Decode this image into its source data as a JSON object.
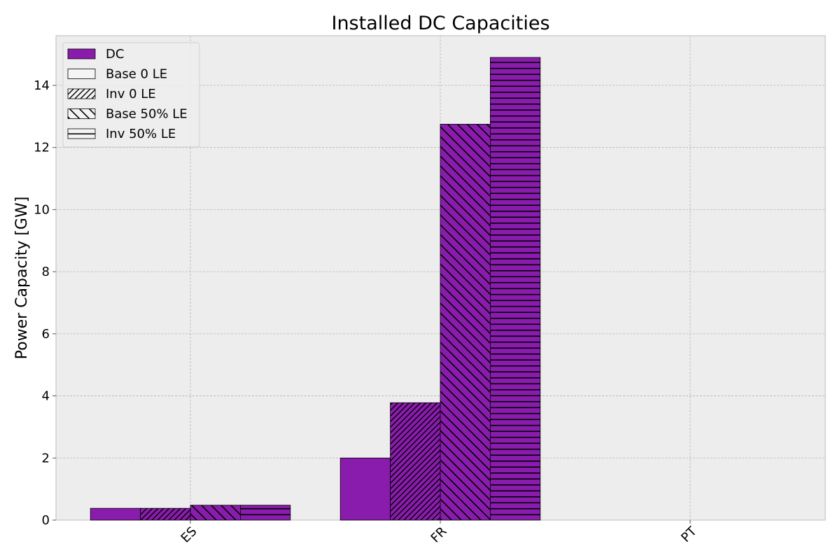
{
  "chart_data": {
    "type": "bar",
    "title": "Installed DC Capacities",
    "xlabel": "",
    "ylabel": "Power Capacity [GW]",
    "categories": [
      "ES",
      "FR",
      "PT"
    ],
    "ylim": [
      0,
      15.6
    ],
    "yticks": [
      0,
      2,
      4,
      6,
      8,
      10,
      12,
      14
    ],
    "grid": true,
    "legend_position": "top-left",
    "bar_color": "#8a1cad",
    "background_color": "#ededed",
    "series": [
      {
        "name": "Base 0 LE",
        "pattern": "solid",
        "values": [
          0.38,
          2.0,
          0
        ]
      },
      {
        "name": "Inv 0 LE",
        "pattern": "forward-hatch",
        "values": [
          0.38,
          3.78,
          0
        ]
      },
      {
        "name": "Base 50% LE",
        "pattern": "back-hatch",
        "values": [
          0.48,
          12.75,
          0
        ]
      },
      {
        "name": "Inv 50% LE",
        "pattern": "horizontal-hatch",
        "values": [
          0.48,
          14.9,
          0
        ]
      }
    ],
    "legend": [
      {
        "label": "DC",
        "swatch": "color"
      },
      {
        "label": "Base 0 LE",
        "swatch": "solid"
      },
      {
        "label": "Inv 0 LE",
        "swatch": "forward-hatch"
      },
      {
        "label": "Base 50% LE",
        "swatch": "back-hatch"
      },
      {
        "label": "Inv 50% LE",
        "swatch": "horizontal-hatch"
      }
    ]
  }
}
